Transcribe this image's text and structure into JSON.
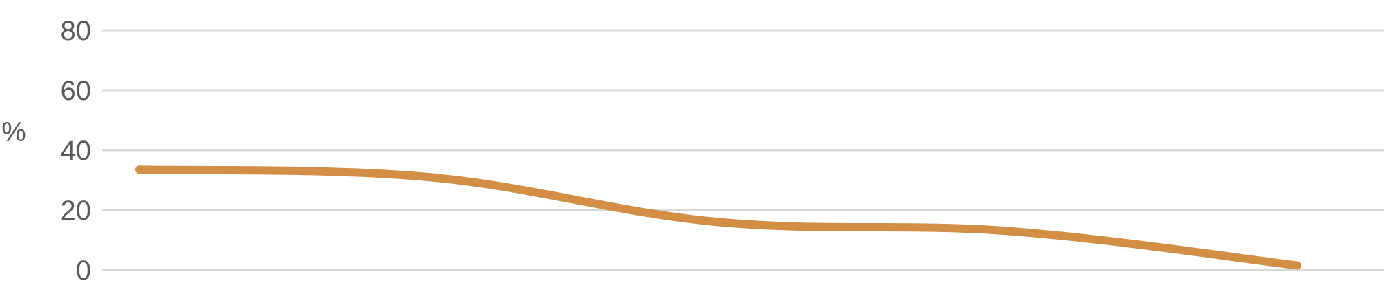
{
  "chart_data": {
    "type": "line",
    "title": "",
    "xlabel": "",
    "ylabel": "%",
    "ylim": [
      0,
      80
    ],
    "yticks": [
      "0",
      "20",
      "40",
      "60",
      "80"
    ],
    "grid": true,
    "legend": "none",
    "smooth": true,
    "series": [
      {
        "color": "#D28E44",
        "values": [
          33.5,
          31,
          16,
          13,
          1.5
        ]
      }
    ]
  }
}
